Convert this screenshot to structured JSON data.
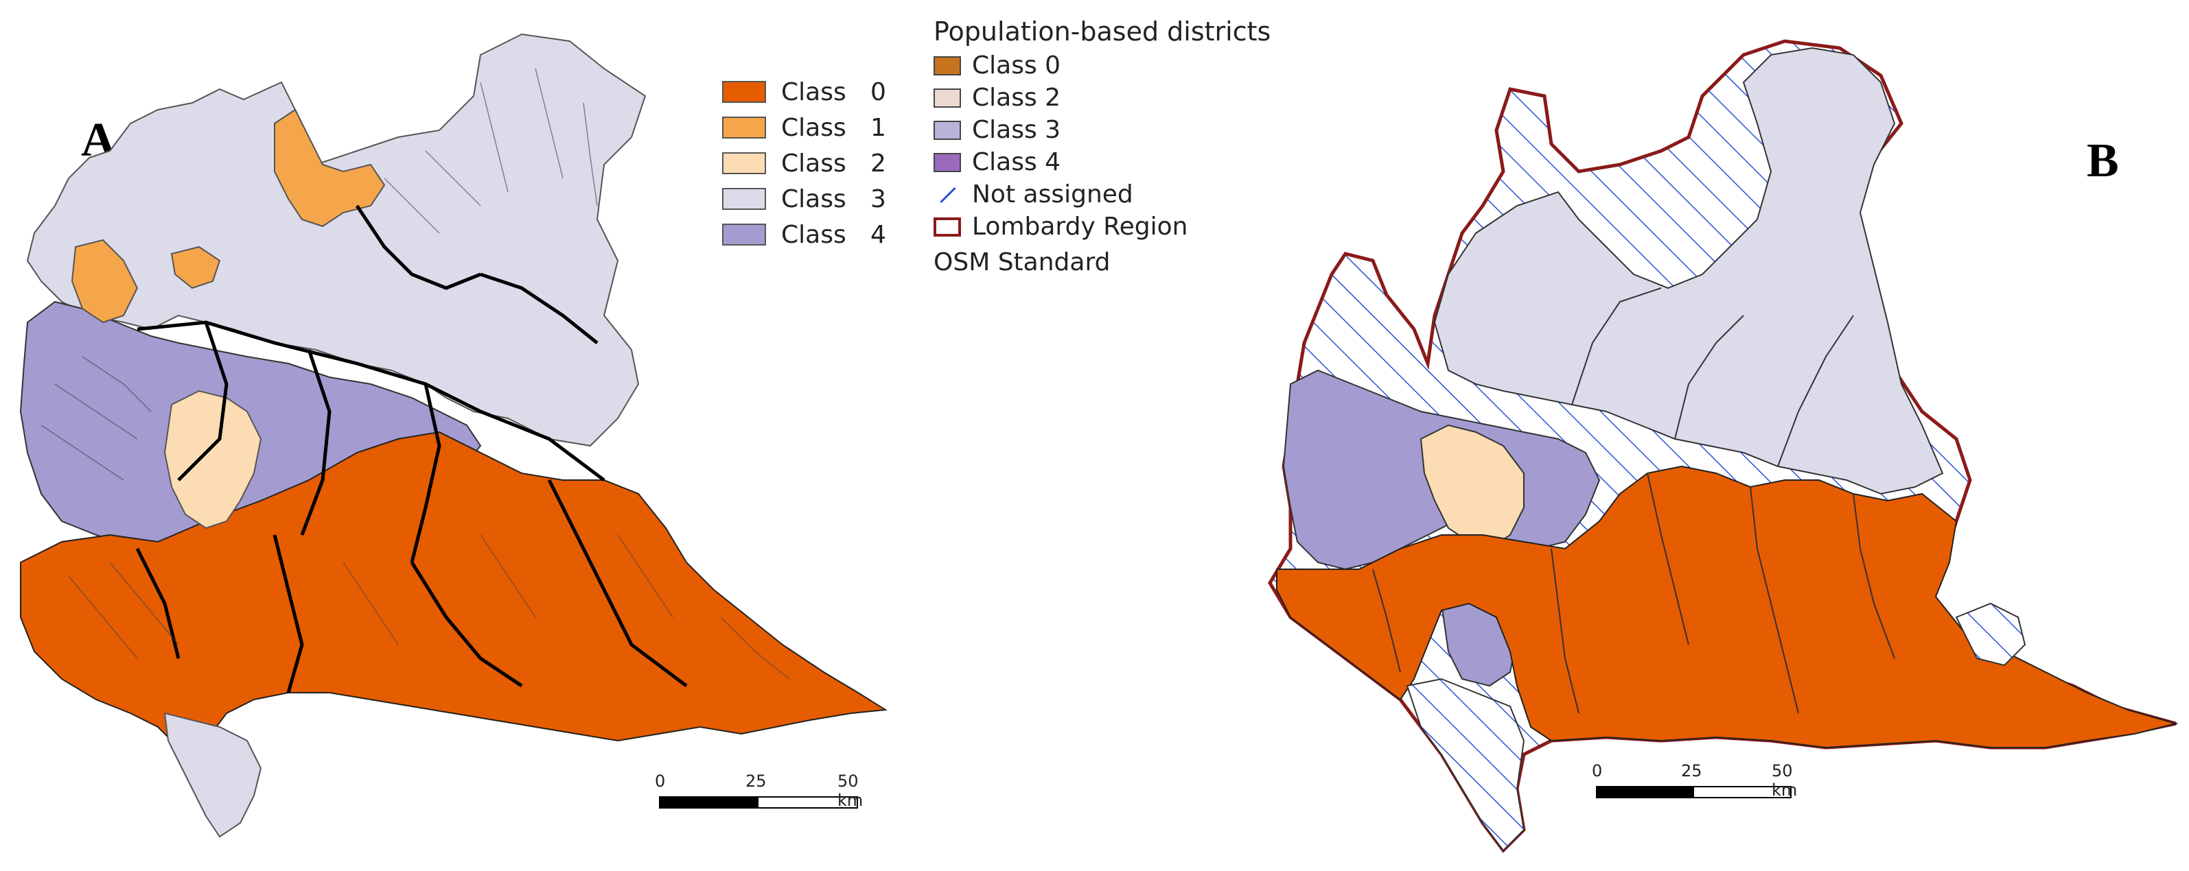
{
  "panel_a": {
    "letter": "A",
    "legend": [
      {
        "label": "Class",
        "num": "0",
        "color": "#e65c00"
      },
      {
        "label": "Class",
        "num": "1",
        "color": "#f5a64a"
      },
      {
        "label": "Class",
        "num": "2",
        "color": "#fbdcb3"
      },
      {
        "label": "Class",
        "num": "3",
        "color": "#dcdbea"
      },
      {
        "label": "Class",
        "num": "4",
        "color": "#a49bd0"
      }
    ],
    "scale": {
      "t0": "0",
      "t1": "25",
      "t2": "50 km"
    }
  },
  "panel_b": {
    "letter": "B",
    "legend_title": "Population-based districts",
    "legend": [
      {
        "label": "Class 0",
        "color": "#c8741e",
        "type": "box"
      },
      {
        "label": "Class 2",
        "color": "#ecd9d0",
        "type": "box"
      },
      {
        "label": "Class 3",
        "color": "#b8b3da",
        "type": "box"
      },
      {
        "label": "Class 4",
        "color": "#9a6bbd",
        "type": "box"
      },
      {
        "label": "Not assigned",
        "color": "#2a52d8",
        "type": "slash"
      },
      {
        "label": "Lombardy Region",
        "color": "#8b1a1a",
        "type": "outline"
      }
    ],
    "basemap_label": "OSM Standard",
    "scale": {
      "t0": "0",
      "t1": "25",
      "t2": "50 km"
    }
  },
  "colors": {
    "orange_dark": "#e65c00",
    "orange_light": "#f5a64a",
    "peach": "#fbdcb3",
    "lavender_light": "#dcdbea",
    "lavender": "#a49bd0",
    "hatch": "#2a52d8",
    "region_outline": "#8b1a1a"
  }
}
